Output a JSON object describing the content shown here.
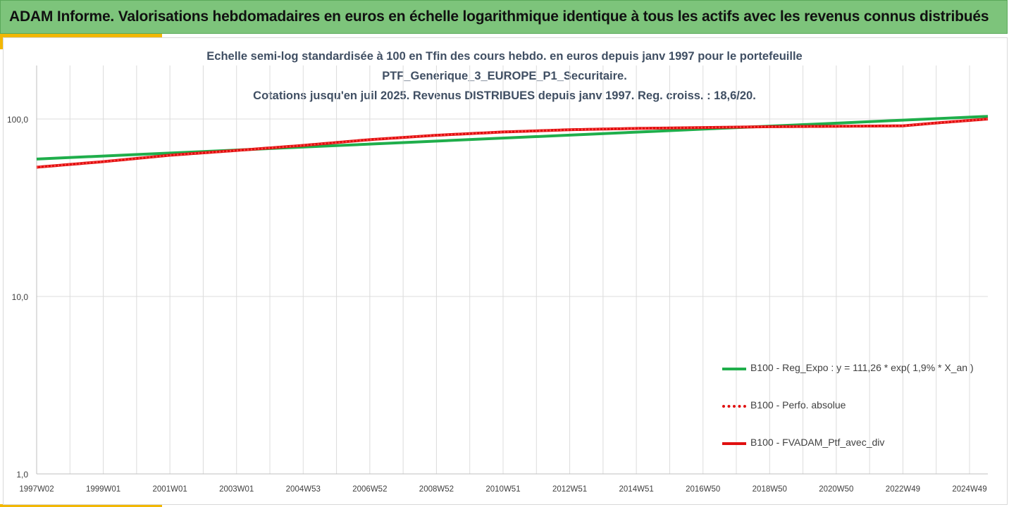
{
  "banner": {
    "title": "ADAM Informe. Valorisations hebdomadaires en euros en échelle logarithmique identique à tous les actifs avec les revenus connus distribués"
  },
  "colors": {
    "banner_bg": "#7dc47b",
    "accent": "#f2b705",
    "green_series": "#1fae4b",
    "red_series": "#e01010",
    "grid": "#d9d9d9",
    "title_text": "#404f63"
  },
  "chart_data": {
    "type": "line",
    "title_lines": [
      "Echelle semi-log standardisée à 100 en Tfin des cours hebdo.  en euros depuis janv 1997 pour le portefeuille",
      "PTF_Generique_3_EUROPE_P1_Securitaire.",
      "Cotations  jusqu'en juil 2025. Revenus DISTRIBUES depuis janv 1997. Reg. croiss. : 18,6/20."
    ],
    "y_scale": "log",
    "ylim": [
      1,
      200
    ],
    "y_ticks": [
      {
        "value": 1,
        "label": "1,0"
      },
      {
        "value": 10,
        "label": "10,0"
      },
      {
        "value": 100,
        "label": "100,0"
      }
    ],
    "x_range": [
      1997.0,
      2025.55
    ],
    "x_ticks": [
      {
        "x": 1997.0,
        "label": "1997W02"
      },
      {
        "x": 1999.0,
        "label": "1999W01"
      },
      {
        "x": 2001.0,
        "label": "2001W01"
      },
      {
        "x": 2003.0,
        "label": "2003W01"
      },
      {
        "x": 2005.0,
        "label": "2004W53"
      },
      {
        "x": 2007.0,
        "label": "2006W52"
      },
      {
        "x": 2009.0,
        "label": "2008W52"
      },
      {
        "x": 2011.0,
        "label": "2010W51"
      },
      {
        "x": 2013.0,
        "label": "2012W51"
      },
      {
        "x": 2015.0,
        "label": "2014W51"
      },
      {
        "x": 2017.0,
        "label": "2016W50"
      },
      {
        "x": 2019.0,
        "label": "2018W50"
      },
      {
        "x": 2021.0,
        "label": "2020W50"
      },
      {
        "x": 2023.0,
        "label": "2022W49"
      },
      {
        "x": 2025.0,
        "label": "2024W49"
      }
    ],
    "grid": true,
    "legend_position": "bottom-right",
    "series": [
      {
        "name": "B100 - Reg_Expo : y = 111,26 * exp( 1,9% *  X_an )",
        "style": "solid",
        "color": "#1fae4b",
        "x": [
          1997.0,
          2025.55
        ],
        "y": [
          59.5,
          103.5
        ]
      },
      {
        "name": "B100 - Perfo. absolue",
        "style": "dotted",
        "color": "#e01010",
        "x": [
          1997.0,
          1999.0,
          2001.0,
          2003.0,
          2005.0,
          2007.0,
          2009.0,
          2011.0,
          2013.0,
          2015.0,
          2017.0,
          2019.0,
          2021.0,
          2023.0,
          2024.0,
          2025.55
        ],
        "y": [
          53.5,
          57.5,
          62.5,
          66.5,
          71.0,
          76.5,
          81.0,
          84.5,
          87.0,
          88.5,
          89.5,
          90.5,
          91.0,
          91.5,
          95.0,
          100.0
        ]
      },
      {
        "name": "B100 - FVADAM_Ptf_avec_div",
        "style": "solid",
        "color": "#e01010",
        "x": [
          1997.0,
          1999.0,
          2001.0,
          2003.0,
          2005.0,
          2007.0,
          2009.0,
          2011.0,
          2013.0,
          2015.0,
          2017.0,
          2019.0,
          2021.0,
          2023.0,
          2024.0,
          2025.55
        ],
        "y": [
          53.5,
          57.5,
          62.5,
          66.5,
          71.0,
          76.5,
          81.0,
          84.5,
          87.0,
          88.5,
          89.5,
          90.5,
          91.0,
          91.5,
          95.0,
          100.0
        ]
      }
    ]
  }
}
